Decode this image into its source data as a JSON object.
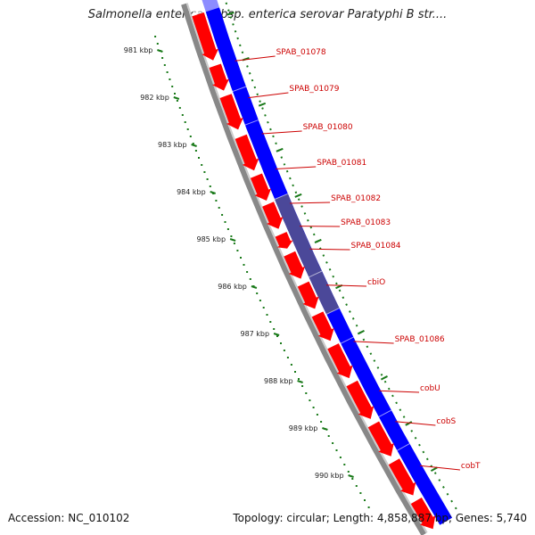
{
  "title": "Salmonella enterica subsp. enterica serovar Paratyphi B str....",
  "footer": {
    "accession": "Accession: NC_010102",
    "topology": "Topology: circular; Length: 4,858,887 bp; Genes: 5,740"
  },
  "ticks": [
    {
      "label": "981 kbp"
    },
    {
      "label": "982 kbp"
    },
    {
      "label": "983 kbp"
    },
    {
      "label": "984 kbp"
    },
    {
      "label": "985 kbp"
    },
    {
      "label": "986 kbp"
    },
    {
      "label": "987 kbp"
    },
    {
      "label": "988 kbp"
    },
    {
      "label": "989 kbp"
    },
    {
      "label": "990 kbp"
    }
  ],
  "genes": [
    {
      "label": "SPAB_01078"
    },
    {
      "label": "SPAB_01079"
    },
    {
      "label": "SPAB_01080"
    },
    {
      "label": "SPAB_01081"
    },
    {
      "label": "SPAB_01082"
    },
    {
      "label": "SPAB_01083"
    },
    {
      "label": "SPAB_01084"
    },
    {
      "label": "cbiO"
    },
    {
      "label": "SPAB_01086"
    },
    {
      "label": "cobU"
    },
    {
      "label": "cobS"
    },
    {
      "label": "cobT"
    }
  ],
  "colors": {
    "forward": "#ff0000",
    "reverse": "#0000ff",
    "highlight": "#4b4899",
    "backbone": "#888888",
    "ticks": "#1a7a1a",
    "label": "#cc0000"
  }
}
